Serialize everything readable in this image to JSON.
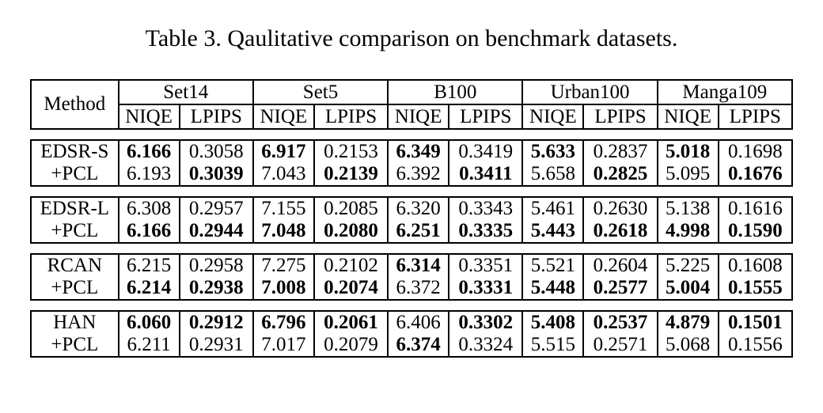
{
  "page": {
    "title": "Table 3. Qaulitative comparison on benchmark datasets."
  },
  "table": {
    "corner_header": "Method",
    "datasets": [
      "Set14",
      "Set5",
      "B100",
      "Urban100",
      "Manga109"
    ],
    "metrics": [
      "NIQE",
      "LPIPS"
    ],
    "blocks": [
      {
        "rows": [
          {
            "method": "EDSR-S",
            "values": [
              "6.166",
              "0.3058",
              "6.917",
              "0.2153",
              "6.349",
              "0.3419",
              "5.633",
              "0.2837",
              "5.018",
              "0.1698"
            ],
            "bold": [
              true,
              false,
              true,
              false,
              true,
              false,
              true,
              false,
              true,
              false
            ]
          },
          {
            "method": "+PCL",
            "values": [
              "6.193",
              "0.3039",
              "7.043",
              "0.2139",
              "6.392",
              "0.3411",
              "5.658",
              "0.2825",
              "5.095",
              "0.1676"
            ],
            "bold": [
              false,
              true,
              false,
              true,
              false,
              true,
              false,
              true,
              false,
              true
            ]
          }
        ]
      },
      {
        "rows": [
          {
            "method": "EDSR-L",
            "values": [
              "6.308",
              "0.2957",
              "7.155",
              "0.2085",
              "6.320",
              "0.3343",
              "5.461",
              "0.2630",
              "5.138",
              "0.1616"
            ],
            "bold": [
              false,
              false,
              false,
              false,
              false,
              false,
              false,
              false,
              false,
              false
            ]
          },
          {
            "method": "+PCL",
            "values": [
              "6.166",
              "0.2944",
              "7.048",
              "0.2080",
              "6.251",
              "0.3335",
              "5.443",
              "0.2618",
              "4.998",
              "0.1590"
            ],
            "bold": [
              true,
              true,
              true,
              true,
              true,
              true,
              true,
              true,
              true,
              true
            ]
          }
        ]
      },
      {
        "rows": [
          {
            "method": "RCAN",
            "values": [
              "6.215",
              "0.2958",
              "7.275",
              "0.2102",
              "6.314",
              "0.3351",
              "5.521",
              "0.2604",
              "5.225",
              "0.1608"
            ],
            "bold": [
              false,
              false,
              false,
              false,
              true,
              false,
              false,
              false,
              false,
              false
            ]
          },
          {
            "method": "+PCL",
            "values": [
              "6.214",
              "0.2938",
              "7.008",
              "0.2074",
              "6.372",
              "0.3331",
              "5.448",
              "0.2577",
              "5.004",
              "0.1555"
            ],
            "bold": [
              true,
              true,
              true,
              true,
              false,
              true,
              true,
              true,
              true,
              true
            ]
          }
        ]
      },
      {
        "rows": [
          {
            "method": "HAN",
            "values": [
              "6.060",
              "0.2912",
              "6.796",
              "0.2061",
              "6.406",
              "0.3302",
              "5.408",
              "0.2537",
              "4.879",
              "0.1501"
            ],
            "bold": [
              true,
              true,
              true,
              true,
              false,
              true,
              true,
              true,
              true,
              true
            ]
          },
          {
            "method": "+PCL",
            "values": [
              "6.211",
              "0.2931",
              "7.017",
              "0.2079",
              "6.374",
              "0.3324",
              "5.515",
              "0.2571",
              "5.068",
              "0.1556"
            ],
            "bold": [
              false,
              false,
              false,
              false,
              true,
              false,
              false,
              false,
              false,
              false
            ]
          }
        ]
      }
    ]
  }
}
